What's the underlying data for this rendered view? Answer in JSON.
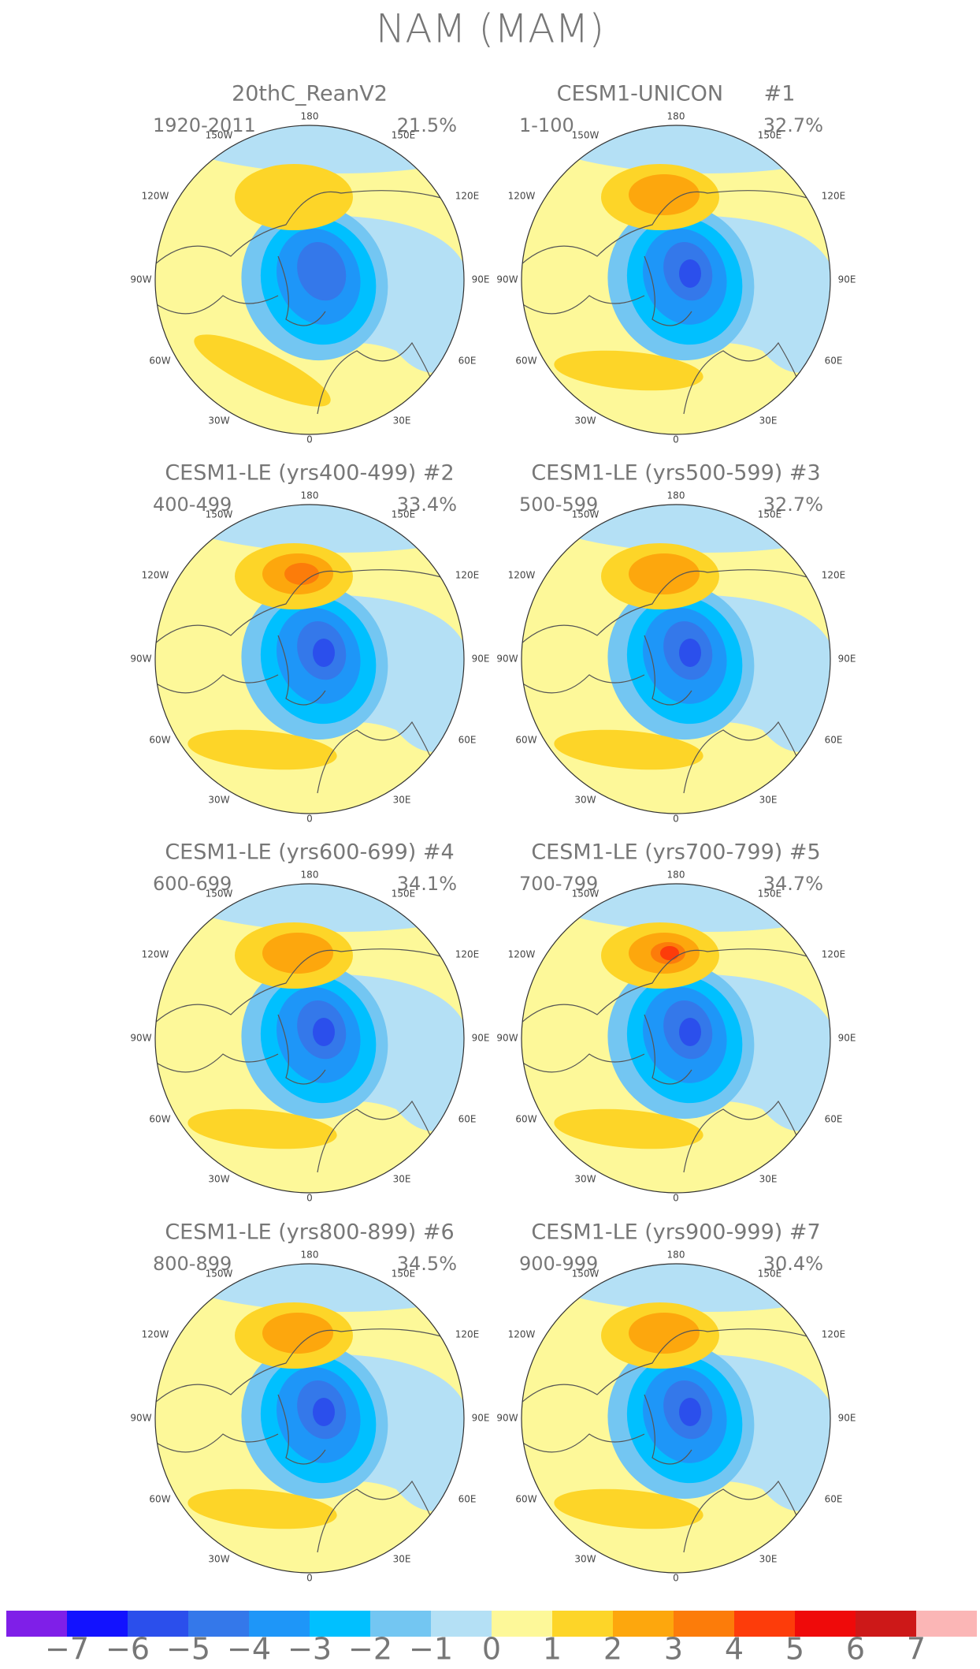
{
  "title": "NAM (MAM)",
  "panels": [
    {
      "title": "20thC_ReanV2",
      "period": "1920-2011",
      "variance": "21.5%"
    },
    {
      "title": "CESM1-UNICON      #1",
      "period": "1-100",
      "variance": "32.7%"
    },
    {
      "title": "CESM1-LE (yrs400-499) #2",
      "period": "400-499",
      "variance": "33.4%"
    },
    {
      "title": "CESM1-LE (yrs500-599) #3",
      "period": "500-599",
      "variance": "32.7%"
    },
    {
      "title": "CESM1-LE (yrs600-699) #4",
      "period": "600-699",
      "variance": "34.1%"
    },
    {
      "title": "CESM1-LE (yrs700-799) #5",
      "period": "700-799",
      "variance": "34.7%"
    },
    {
      "title": "CESM1-LE (yrs800-899) #6",
      "period": "800-899",
      "variance": "34.5%"
    },
    {
      "title": "CESM1-LE (yrs900-999) #7",
      "period": "900-999",
      "variance": "30.4%"
    }
  ],
  "longitude_labels": [
    "180",
    "150W",
    "150E",
    "120W",
    "120E",
    "90W",
    "90E",
    "60W",
    "60E",
    "30W",
    "30E",
    "0"
  ],
  "colorbar": {
    "colors": [
      "#7f1fe8",
      "#1212ff",
      "#2b4fec",
      "#3478ea",
      "#1e96f8",
      "#00c0ff",
      "#73c6f2",
      "#b4e0f5",
      "#fdf899",
      "#fdd528",
      "#fda70d",
      "#fc7c0a",
      "#fd3c0a",
      "#ef0a0a",
      "#cd1818",
      "#fbb6b6"
    ],
    "labels": [
      {
        "value": -7,
        "label": "−7"
      },
      {
        "value": -6,
        "label": "−6"
      },
      {
        "value": -5,
        "label": "−5"
      },
      {
        "value": -4,
        "label": "−4"
      },
      {
        "value": -3,
        "label": "−3"
      },
      {
        "value": -2,
        "label": "−2"
      },
      {
        "value": -1,
        "label": "−1"
      },
      0,
      1,
      2,
      3,
      4,
      5,
      6,
      7
    ]
  }
}
